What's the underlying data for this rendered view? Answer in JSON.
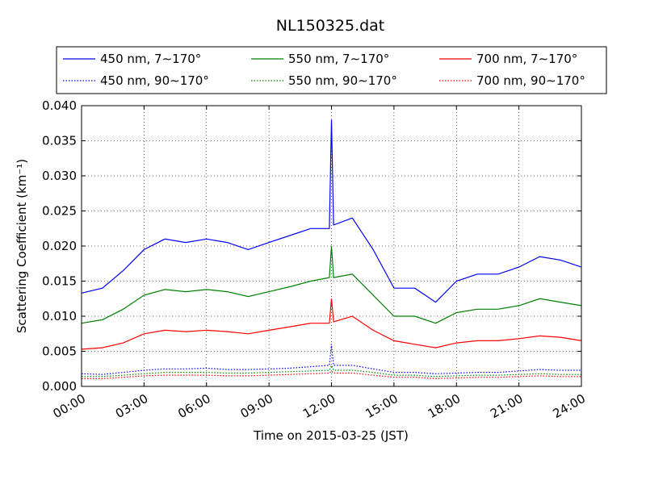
{
  "chart_data": {
    "type": "line",
    "title": "NL150325.dat",
    "xlabel": "Time on 2015-03-25 (JST)",
    "ylabel": "Scattering Coefficient (km⁻¹)",
    "xlim": [
      "00:00",
      "24:00"
    ],
    "ylim": [
      0,
      0.04
    ],
    "xticks": [
      "00:00",
      "03:00",
      "06:00",
      "09:00",
      "12:00",
      "15:00",
      "18:00",
      "21:00",
      "24:00"
    ],
    "yticks": [
      "0.000",
      "0.005",
      "0.010",
      "0.015",
      "0.020",
      "0.025",
      "0.030",
      "0.035",
      "0.040"
    ],
    "grid": true,
    "legend_position": "top (above plot)",
    "x_hours": [
      0,
      1,
      2,
      3,
      4,
      5,
      6,
      7,
      8,
      9,
      10,
      11,
      11.9,
      12,
      12.1,
      13,
      14,
      15,
      16,
      17,
      18,
      19,
      20,
      21,
      22,
      23,
      24
    ],
    "series": [
      {
        "name": "450 nm, 7∼170°",
        "color": "#0000ff",
        "style": "solid",
        "values": [
          0.0133,
          0.014,
          0.0165,
          0.0195,
          0.021,
          0.0205,
          0.021,
          0.0205,
          0.0195,
          0.0205,
          0.0215,
          0.0225,
          0.0225,
          0.038,
          0.023,
          0.024,
          0.0195,
          0.014,
          0.014,
          0.012,
          0.015,
          0.016,
          0.016,
          0.017,
          0.0185,
          0.018,
          0.017
        ]
      },
      {
        "name": "450 nm, 90∼170°",
        "color": "#0000ff",
        "style": "dotted",
        "values": [
          0.0018,
          0.0017,
          0.002,
          0.0023,
          0.0025,
          0.0025,
          0.0026,
          0.0024,
          0.0024,
          0.0025,
          0.0026,
          0.0028,
          0.003,
          0.006,
          0.003,
          0.003,
          0.0025,
          0.002,
          0.002,
          0.0018,
          0.0019,
          0.002,
          0.002,
          0.0022,
          0.0024,
          0.0023,
          0.0023
        ]
      },
      {
        "name": "550 nm, 7∼170°",
        "color": "#008000",
        "style": "solid",
        "values": [
          0.009,
          0.0095,
          0.011,
          0.013,
          0.0138,
          0.0135,
          0.0138,
          0.0135,
          0.0128,
          0.0135,
          0.0142,
          0.015,
          0.0155,
          0.02,
          0.0155,
          0.016,
          0.013,
          0.01,
          0.01,
          0.009,
          0.0105,
          0.011,
          0.011,
          0.0115,
          0.0125,
          0.012,
          0.0115
        ]
      },
      {
        "name": "550 nm, 90∼170°",
        "color": "#008000",
        "style": "dotted",
        "values": [
          0.0014,
          0.0014,
          0.0016,
          0.0018,
          0.002,
          0.002,
          0.002,
          0.0019,
          0.0019,
          0.002,
          0.0021,
          0.0022,
          0.0023,
          0.003,
          0.0023,
          0.0023,
          0.002,
          0.0016,
          0.0016,
          0.0014,
          0.0015,
          0.0016,
          0.0016,
          0.0017,
          0.0018,
          0.0017,
          0.0017
        ]
      },
      {
        "name": "700 nm, 7∼170°",
        "color": "#ff0000",
        "style": "solid",
        "values": [
          0.0053,
          0.0055,
          0.0062,
          0.0075,
          0.008,
          0.0078,
          0.008,
          0.0078,
          0.0075,
          0.008,
          0.0085,
          0.009,
          0.009,
          0.0125,
          0.0092,
          0.01,
          0.008,
          0.0065,
          0.006,
          0.0055,
          0.0062,
          0.0065,
          0.0065,
          0.0068,
          0.0072,
          0.007,
          0.0065
        ]
      },
      {
        "name": "700 nm, 90∼170°",
        "color": "#ff0000",
        "style": "dotted",
        "values": [
          0.0011,
          0.0011,
          0.0013,
          0.0015,
          0.0016,
          0.0016,
          0.0016,
          0.0015,
          0.0015,
          0.0016,
          0.0017,
          0.0018,
          0.0019,
          0.0022,
          0.0019,
          0.0019,
          0.0016,
          0.0013,
          0.0013,
          0.0011,
          0.0012,
          0.0013,
          0.0013,
          0.0014,
          0.0015,
          0.0014,
          0.0014
        ]
      }
    ]
  }
}
